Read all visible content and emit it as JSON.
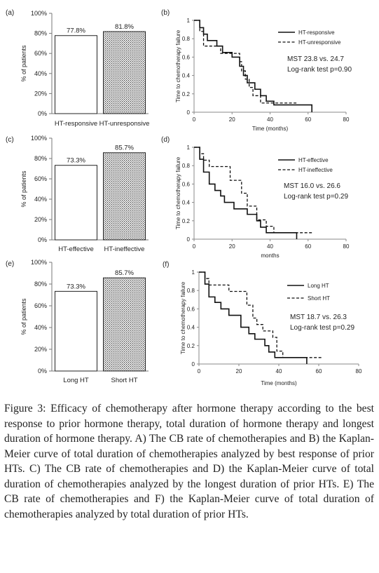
{
  "figure": {
    "caption_label": "Figure 3:",
    "caption_text": "Efficacy of chemotherapy after hormone therapy according to the best response to prior hormone therapy, total duration of hormone therapy and longest duration of hormone therapy. A) The CB rate of chemotherapies and B) the Kaplan-Meier curve of total duration of chemotherapies analyzed by best response of prior HTs. C) The CB rate of chemotherapies and D) the Kaplan-Meier curve of total duration of chemotherapies analyzed by the longest duration of prior HTs. E) The CB rate of chemotherapies and F) the Kaplan-Meier curve of total duration of chemotherapies analyzed by total duration of prior HTs."
  },
  "chart_data": [
    {
      "panel": "(a)",
      "type": "bar",
      "categories": [
        "HT-responsive",
        "HT-unresponsive"
      ],
      "values": [
        77.8,
        81.8
      ],
      "value_labels": [
        "77.8%",
        "81.8%"
      ],
      "fills": [
        "white",
        "dots"
      ],
      "ylabel": "% of patients",
      "ylim": [
        0,
        100
      ],
      "yticks": [
        "0%",
        "20%",
        "40%",
        "60%",
        "80%",
        "100%"
      ],
      "grid": false
    },
    {
      "panel": "(b)",
      "type": "line",
      "title": "",
      "xlabel": "Time (months)",
      "ylabel": "Time to chemotherapy failure",
      "xlim": [
        0,
        80
      ],
      "ylim": [
        0,
        1
      ],
      "xticks": [
        "0",
        "20",
        "40",
        "60",
        "80"
      ],
      "yticks": [
        "0",
        "0.2",
        "0.4",
        "0.6",
        "0.8",
        "1"
      ],
      "legend_position": "top-right",
      "annotation": [
        "MST 23.8 vs. 24.7",
        "Log-rank test p=0.90"
      ],
      "series": [
        {
          "name": "HT-responsive",
          "style": "solid",
          "x": [
            0,
            3,
            5,
            7,
            12,
            15,
            20,
            24,
            26,
            28,
            32,
            35,
            38,
            42,
            62
          ],
          "y": [
            1,
            0.92,
            0.85,
            0.78,
            0.72,
            0.65,
            0.6,
            0.5,
            0.4,
            0.32,
            0.25,
            0.18,
            0.12,
            0.08,
            0
          ]
        },
        {
          "name": "HT-unresponsive",
          "style": "dashed",
          "x": [
            0,
            3,
            5,
            10,
            14,
            18,
            24,
            25,
            27,
            29,
            31,
            35,
            38,
            54
          ],
          "y": [
            1,
            0.88,
            0.72,
            0.72,
            0.64,
            0.64,
            0.55,
            0.45,
            0.36,
            0.27,
            0.18,
            0.1,
            0.1,
            0.1
          ]
        }
      ]
    },
    {
      "panel": "(c)",
      "type": "bar",
      "categories": [
        "HT-effective",
        "HT-ineffective"
      ],
      "values": [
        73.3,
        85.7
      ],
      "value_labels": [
        "73.3%",
        "85.7%"
      ],
      "fills": [
        "white",
        "dots"
      ],
      "ylabel": "% of patients",
      "ylim": [
        0,
        100
      ],
      "yticks": [
        "0%",
        "20%",
        "40%",
        "60%",
        "80%",
        "100%"
      ],
      "grid": false
    },
    {
      "panel": "(d)",
      "type": "line",
      "title": "",
      "xlabel": "months",
      "ylabel": "Time to chemotherapy failure",
      "xlim": [
        0,
        80
      ],
      "ylim": [
        0,
        1
      ],
      "xticks": [
        "0",
        "20",
        "40",
        "60",
        "80"
      ],
      "yticks": [
        "0",
        "0.2",
        "0.4",
        "0.6",
        "0.8",
        "1"
      ],
      "legend_position": "top-right",
      "annotation": [
        "MST 16.0 vs. 26.6",
        "Log-rank test p=0.29"
      ],
      "series": [
        {
          "name": "HT-effective",
          "style": "solid",
          "x": [
            0,
            3,
            5,
            8,
            11,
            14,
            16,
            21,
            25,
            28,
            33,
            35,
            38,
            42,
            54
          ],
          "y": [
            1,
            0.87,
            0.73,
            0.6,
            0.53,
            0.47,
            0.4,
            0.33,
            0.33,
            0.27,
            0.2,
            0.13,
            0.07,
            0.07,
            0
          ]
        },
        {
          "name": "HT-ineffective",
          "style": "dashed",
          "x": [
            0,
            3,
            5,
            8,
            15,
            19,
            25,
            28,
            33,
            38,
            42,
            62
          ],
          "y": [
            1,
            0.93,
            0.86,
            0.79,
            0.79,
            0.64,
            0.5,
            0.36,
            0.21,
            0.14,
            0.07,
            0.07
          ]
        }
      ]
    },
    {
      "panel": "(e)",
      "type": "bar",
      "categories": [
        "Long HT",
        "Short HT"
      ],
      "values": [
        73.3,
        85.7
      ],
      "value_labels": [
        "73.3%",
        "85.7%"
      ],
      "fills": [
        "white",
        "dots"
      ],
      "ylabel": "% of patients",
      "ylim": [
        0,
        100
      ],
      "yticks": [
        "0%",
        "20%",
        "40%",
        "60%",
        "80%",
        "100%"
      ],
      "grid": false
    },
    {
      "panel": "(f)",
      "type": "line",
      "title": "",
      "xlabel": "Time (months)",
      "ylabel": "Time to chemotherapy failure",
      "xlim": [
        0,
        80
      ],
      "ylim": [
        0,
        1
      ],
      "xticks": [
        "0",
        "20",
        "40",
        "60",
        "80"
      ],
      "yticks": [
        "0",
        "0.2",
        "0.4",
        "0.6",
        "0.8",
        "1"
      ],
      "legend_position": "top-right",
      "annotation": [
        "MST 18.7 vs. 26.3",
        "Log-rank test p=0.29"
      ],
      "series": [
        {
          "name": "Long HT",
          "style": "solid",
          "x": [
            0,
            3,
            5,
            8,
            11,
            15,
            21,
            25,
            28,
            33,
            35,
            38,
            42,
            54
          ],
          "y": [
            1,
            0.87,
            0.73,
            0.67,
            0.6,
            0.53,
            0.4,
            0.33,
            0.27,
            0.2,
            0.13,
            0.07,
            0.07,
            0
          ]
        },
        {
          "name": "Short HT",
          "style": "dashed",
          "x": [
            0,
            3,
            5,
            10,
            15,
            20,
            24,
            27,
            29,
            32,
            37,
            39,
            42,
            62
          ],
          "y": [
            1,
            0.93,
            0.86,
            0.86,
            0.79,
            0.79,
            0.64,
            0.5,
            0.43,
            0.36,
            0.29,
            0.14,
            0.07,
            0.07
          ]
        }
      ]
    }
  ]
}
